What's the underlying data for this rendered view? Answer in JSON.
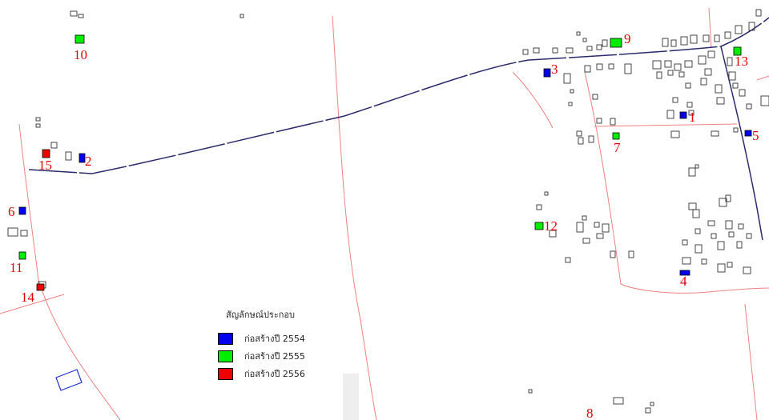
{
  "legend": {
    "title": "สัญลักษณ์ประกอบ",
    "items": [
      {
        "label": "ก่อสร้างปี 2554",
        "color": "#0000ee"
      },
      {
        "label": "ก่อสร้างปี 2555",
        "color": "#00ee00"
      },
      {
        "label": "ก่อสร้างปี 2556",
        "color": "#ee0000"
      }
    ]
  },
  "markers": [
    {
      "label": "1",
      "year": "2554"
    },
    {
      "label": "2",
      "year": "2554"
    },
    {
      "label": "3",
      "year": "2554"
    },
    {
      "label": "4",
      "year": "2554"
    },
    {
      "label": "5",
      "year": "2554"
    },
    {
      "label": "6",
      "year": "2554"
    },
    {
      "label": "7",
      "year": "2555"
    },
    {
      "label": "8",
      "year": ""
    },
    {
      "label": "9",
      "year": "2555"
    },
    {
      "label": "10",
      "year": "2555"
    },
    {
      "label": "11",
      "year": "2555"
    },
    {
      "label": "12",
      "year": "2555"
    },
    {
      "label": "13",
      "year": "2555"
    },
    {
      "label": "14",
      "year": "2556"
    },
    {
      "label": "15",
      "year": "2556"
    }
  ],
  "colors": {
    "road": "#2a2a6a",
    "boundary": "#f08080",
    "building": "#333333",
    "label": "#e00000"
  }
}
